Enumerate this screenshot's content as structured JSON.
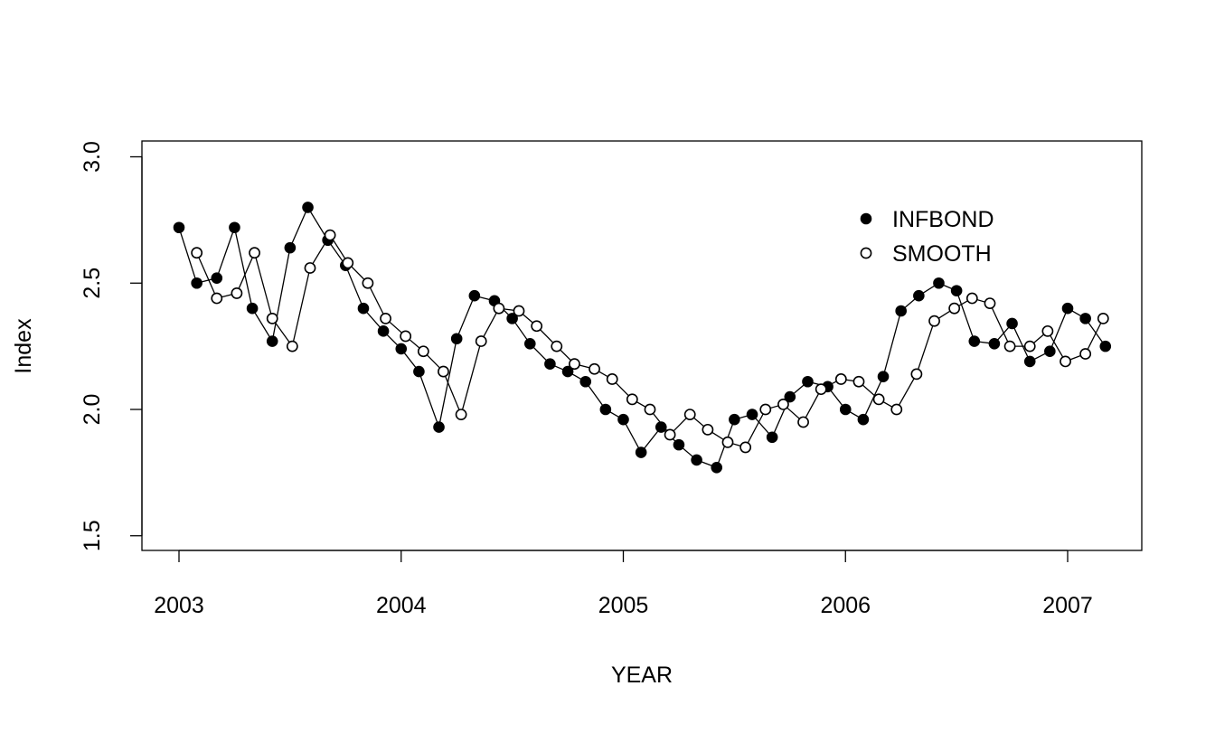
{
  "chart_data": {
    "type": "line",
    "title": "",
    "xlabel": "YEAR",
    "ylabel": "Index",
    "xlim": [
      2002.84,
      2007.34
    ],
    "ylim": [
      1.44,
      3.06
    ],
    "x_ticks": [
      2003,
      2004,
      2005,
      2006,
      2007
    ],
    "x_tick_labels": [
      "2003",
      "2004",
      "2005",
      "2006",
      "2007"
    ],
    "y_ticks": [
      1.5,
      2.0,
      2.5,
      3.0
    ],
    "y_tick_labels": [
      "1.5",
      "2.0",
      "2.5",
      "3.0"
    ],
    "grid": false,
    "legend_position": "top-right",
    "series": [
      {
        "name": "INFBOND",
        "marker": "filled-circle",
        "color": "#000000",
        "x": [
          2003.0,
          2003.08,
          2003.17,
          2003.25,
          2003.33,
          2003.42,
          2003.5,
          2003.58,
          2003.67,
          2003.75,
          2003.83,
          2003.92,
          2004.0,
          2004.08,
          2004.17,
          2004.25,
          2004.33,
          2004.42,
          2004.5,
          2004.58,
          2004.67,
          2004.75,
          2004.83,
          2004.92,
          2005.0,
          2005.08,
          2005.17,
          2005.25,
          2005.33,
          2005.42,
          2005.5,
          2005.58,
          2005.67,
          2005.75,
          2005.83,
          2005.92,
          2006.0,
          2006.08,
          2006.17,
          2006.25,
          2006.33,
          2006.42,
          2006.5,
          2006.58,
          2006.67,
          2006.75,
          2006.83,
          2006.92,
          2007.0,
          2007.08,
          2007.17
        ],
        "y": [
          2.72,
          2.5,
          2.52,
          2.72,
          2.4,
          2.27,
          2.64,
          2.8,
          2.67,
          2.57,
          2.4,
          2.31,
          2.24,
          2.15,
          1.93,
          2.28,
          2.45,
          2.43,
          2.36,
          2.26,
          2.18,
          2.15,
          2.11,
          2.0,
          1.96,
          1.83,
          1.93,
          1.86,
          1.8,
          1.77,
          1.96,
          1.98,
          1.89,
          2.05,
          2.11,
          2.09,
          2.0,
          1.96,
          2.13,
          2.39,
          2.45,
          2.5,
          2.47,
          2.27,
          2.26,
          2.34,
          2.19,
          2.23,
          2.4,
          2.36,
          2.25
        ]
      },
      {
        "name": "SMOOTH",
        "marker": "open-circle",
        "color": "#000000",
        "x": [
          2003.08,
          2003.17,
          2003.26,
          2003.34,
          2003.42,
          2003.51,
          2003.59,
          2003.68,
          2003.76,
          2003.85,
          2003.93,
          2004.02,
          2004.1,
          2004.19,
          2004.27,
          2004.36,
          2004.44,
          2004.53,
          2004.61,
          2004.7,
          2004.78,
          2004.87,
          2004.95,
          2005.04,
          2005.12,
          2005.21,
          2005.3,
          2005.38,
          2005.47,
          2005.55,
          2005.64,
          2005.72,
          2005.81,
          2005.89,
          2005.98,
          2006.06,
          2006.15,
          2006.23,
          2006.32,
          2006.4,
          2006.49,
          2006.57,
          2006.65,
          2006.74,
          2006.83,
          2006.91,
          2006.99,
          2007.08,
          2007.16
        ],
        "y": [
          2.62,
          2.44,
          2.46,
          2.62,
          2.36,
          2.25,
          2.56,
          2.69,
          2.58,
          2.5,
          2.36,
          2.29,
          2.23,
          2.15,
          1.98,
          2.27,
          2.4,
          2.39,
          2.33,
          2.25,
          2.18,
          2.16,
          2.12,
          2.04,
          2.0,
          1.9,
          1.98,
          1.92,
          1.87,
          1.85,
          2.0,
          2.02,
          1.95,
          2.08,
          2.12,
          2.11,
          2.04,
          2.0,
          2.14,
          2.35,
          2.4,
          2.44,
          2.42,
          2.25,
          2.25,
          2.31,
          2.19,
          2.22,
          2.36
        ]
      }
    ]
  }
}
